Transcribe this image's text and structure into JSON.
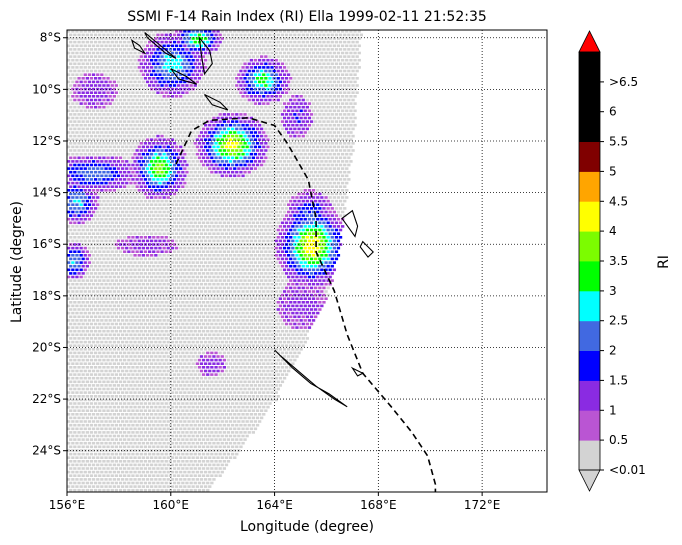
{
  "chart_data": {
    "type": "map",
    "title": "SSMI F-14 Rain Index (RI) Ella 1999-02-11 21:52:35",
    "xlabel": "Longitude (degree)",
    "ylabel": "Latitude (degree)",
    "xlim": [
      156,
      174.5
    ],
    "ylim": [
      -25.6,
      -7.7
    ],
    "x_ticks": [
      {
        "value": 156,
        "label": "156°E"
      },
      {
        "value": 160,
        "label": "160°E"
      },
      {
        "value": 164,
        "label": "164°E"
      },
      {
        "value": 168,
        "label": "168°E"
      },
      {
        "value": 172,
        "label": "172°E"
      }
    ],
    "y_ticks": [
      {
        "value": -8,
        "label": "8°S"
      },
      {
        "value": -10,
        "label": "10°S"
      },
      {
        "value": -12,
        "label": "12°S"
      },
      {
        "value": -14,
        "label": "14°S"
      },
      {
        "value": -16,
        "label": "16°S"
      },
      {
        "value": -18,
        "label": "18°S"
      },
      {
        "value": -20,
        "label": "20°S"
      },
      {
        "value": -22,
        "label": "22°S"
      },
      {
        "value": -24,
        "label": "24°S"
      }
    ],
    "grid": true,
    "colorbar": {
      "label": "RI",
      "bins": [
        {
          "label": "<0.01",
          "color": "#d3d3d3"
        },
        {
          "label": "0.5",
          "color": "#ba55d3"
        },
        {
          "label": "1",
          "color": "#8a2be2"
        },
        {
          "label": "1.5",
          "color": "#0000ff"
        },
        {
          "label": "2",
          "color": "#4169e1"
        },
        {
          "label": "2.5",
          "color": "#00ffff"
        },
        {
          "label": "3",
          "color": "#00ff00"
        },
        {
          "label": "3.5",
          "color": "#7cfc00"
        },
        {
          "label": "4",
          "color": "#ffff00"
        },
        {
          "label": "4.5",
          "color": "#ffa500"
        },
        {
          "label": "5",
          "color": "#800000"
        },
        {
          "label": "5.5",
          "color": "#000000"
        },
        {
          "label": "6",
          "color": "#000000"
        },
        {
          "label": ">6.5",
          "color": "#000000"
        }
      ],
      "under_color": "#d3d3d3",
      "over_color": "#ff0000"
    },
    "swath": {
      "lat_top": -7.7,
      "lat_bottom": -25.6,
      "east_edge": [
        [
          -7.7,
          167.3
        ],
        [
          -12,
          167.0
        ],
        [
          -16,
          166.5
        ],
        [
          -18,
          166.0
        ],
        [
          -20,
          165.0
        ],
        [
          -22,
          164.0
        ],
        [
          -24,
          162.6
        ],
        [
          -25.6,
          161.3
        ]
      ]
    },
    "rain_cells": [
      {
        "lat": -12.1,
        "lon": 162.3,
        "rx": 1.0,
        "ry": 0.9,
        "peak": 3.6
      },
      {
        "lat": -13.0,
        "lon": 159.5,
        "rx": 0.8,
        "ry": 0.9,
        "peak": 3.1
      },
      {
        "lat": -16.0,
        "lon": 165.4,
        "rx": 1.0,
        "ry": 1.2,
        "peak": 3.8
      },
      {
        "lat": -9.6,
        "lon": 163.5,
        "rx": 0.8,
        "ry": 0.7,
        "peak": 2.6
      },
      {
        "lat": -9.0,
        "lon": 160.0,
        "rx": 1.0,
        "ry": 1.0,
        "peak": 2.2
      },
      {
        "lat": -8.0,
        "lon": 161.0,
        "rx": 0.7,
        "ry": 0.5,
        "peak": 2.8
      },
      {
        "lat": -13.2,
        "lon": 157.0,
        "rx": 1.4,
        "ry": 0.6,
        "peak": 1.8
      },
      {
        "lat": -14.3,
        "lon": 156.3,
        "rx": 0.7,
        "ry": 0.7,
        "peak": 2.0
      },
      {
        "lat": -15.0,
        "lon": 165.3,
        "rx": 0.8,
        "ry": 1.0,
        "peak": 1.6
      },
      {
        "lat": -11.0,
        "lon": 164.8,
        "rx": 0.6,
        "ry": 0.8,
        "peak": 1.0
      },
      {
        "lat": -16.6,
        "lon": 156.2,
        "rx": 0.5,
        "ry": 0.6,
        "peak": 2.0
      },
      {
        "lat": -16.0,
        "lon": 159.0,
        "rx": 1.5,
        "ry": 0.5,
        "peak": 0.6
      },
      {
        "lat": -18.3,
        "lon": 165.0,
        "rx": 1.2,
        "ry": 1.2,
        "peak": 0.6
      },
      {
        "lat": -20.6,
        "lon": 161.5,
        "rx": 0.7,
        "ry": 0.6,
        "peak": 0.6
      },
      {
        "lat": -10.0,
        "lon": 157.0,
        "rx": 1.0,
        "ry": 0.8,
        "peak": 0.7
      }
    ],
    "track": [
      [
        -12.9,
        160.2
      ],
      [
        -11.6,
        160.8
      ],
      [
        -11.2,
        161.5
      ],
      [
        -11.1,
        163.0
      ],
      [
        -11.4,
        164.0
      ],
      [
        -12.1,
        164.5
      ],
      [
        -13.5,
        165.3
      ],
      [
        -15.0,
        165.6
      ],
      [
        -16.3,
        165.6
      ],
      [
        -17.8,
        166.3
      ],
      [
        -19.5,
        166.8
      ],
      [
        -21.0,
        167.4
      ],
      [
        -22.3,
        168.5
      ],
      [
        -23.3,
        169.3
      ],
      [
        -24.2,
        169.9
      ],
      [
        -25.3,
        170.2
      ],
      [
        -25.6,
        170.2
      ]
    ],
    "coastlines": [
      [
        [
          -8.1,
          158.5
        ],
        [
          -8.3,
          158.8
        ],
        [
          -8.6,
          159.0
        ],
        [
          -8.4,
          158.6
        ],
        [
          -8.1,
          158.5
        ]
      ],
      [
        [
          -7.8,
          159.0
        ],
        [
          -8.3,
          159.6
        ],
        [
          -8.8,
          160.2
        ],
        [
          -8.6,
          159.8
        ],
        [
          -8.0,
          159.1
        ],
        [
          -7.8,
          159.0
        ]
      ],
      [
        [
          -8.0,
          161.1
        ],
        [
          -8.5,
          161.5
        ],
        [
          -9.0,
          161.6
        ],
        [
          -9.4,
          161.3
        ],
        [
          -8.8,
          161.2
        ],
        [
          -8.0,
          161.1
        ]
      ],
      [
        [
          -9.2,
          160.0
        ],
        [
          -9.5,
          160.6
        ],
        [
          -9.8,
          161.0
        ],
        [
          -9.6,
          160.3
        ],
        [
          -9.2,
          160.0
        ]
      ],
      [
        [
          -10.2,
          161.3
        ],
        [
          -10.5,
          161.9
        ],
        [
          -10.8,
          162.2
        ],
        [
          -10.6,
          161.6
        ],
        [
          -10.2,
          161.3
        ]
      ],
      [
        [
          -14.7,
          167.0
        ],
        [
          -15.3,
          167.2
        ],
        [
          -15.7,
          167.1
        ],
        [
          -15.0,
          166.6
        ],
        [
          -14.7,
          167.0
        ]
      ],
      [
        [
          -15.9,
          167.4
        ],
        [
          -16.3,
          167.8
        ],
        [
          -16.5,
          167.6
        ],
        [
          -16.1,
          167.3
        ],
        [
          -15.9,
          167.4
        ]
      ],
      [
        [
          -20.8,
          167.0
        ],
        [
          -21.0,
          167.4
        ],
        [
          -21.1,
          167.2
        ],
        [
          -20.8,
          167.0
        ]
      ],
      [
        [
          -20.1,
          164.0
        ],
        [
          -20.8,
          164.7
        ],
        [
          -21.4,
          165.4
        ],
        [
          -21.8,
          166.1
        ],
        [
          -22.3,
          166.8
        ],
        [
          -22.0,
          166.3
        ],
        [
          -21.5,
          165.6
        ],
        [
          -20.9,
          164.9
        ],
        [
          -20.3,
          164.2
        ],
        [
          -20.1,
          164.0
        ]
      ]
    ]
  }
}
